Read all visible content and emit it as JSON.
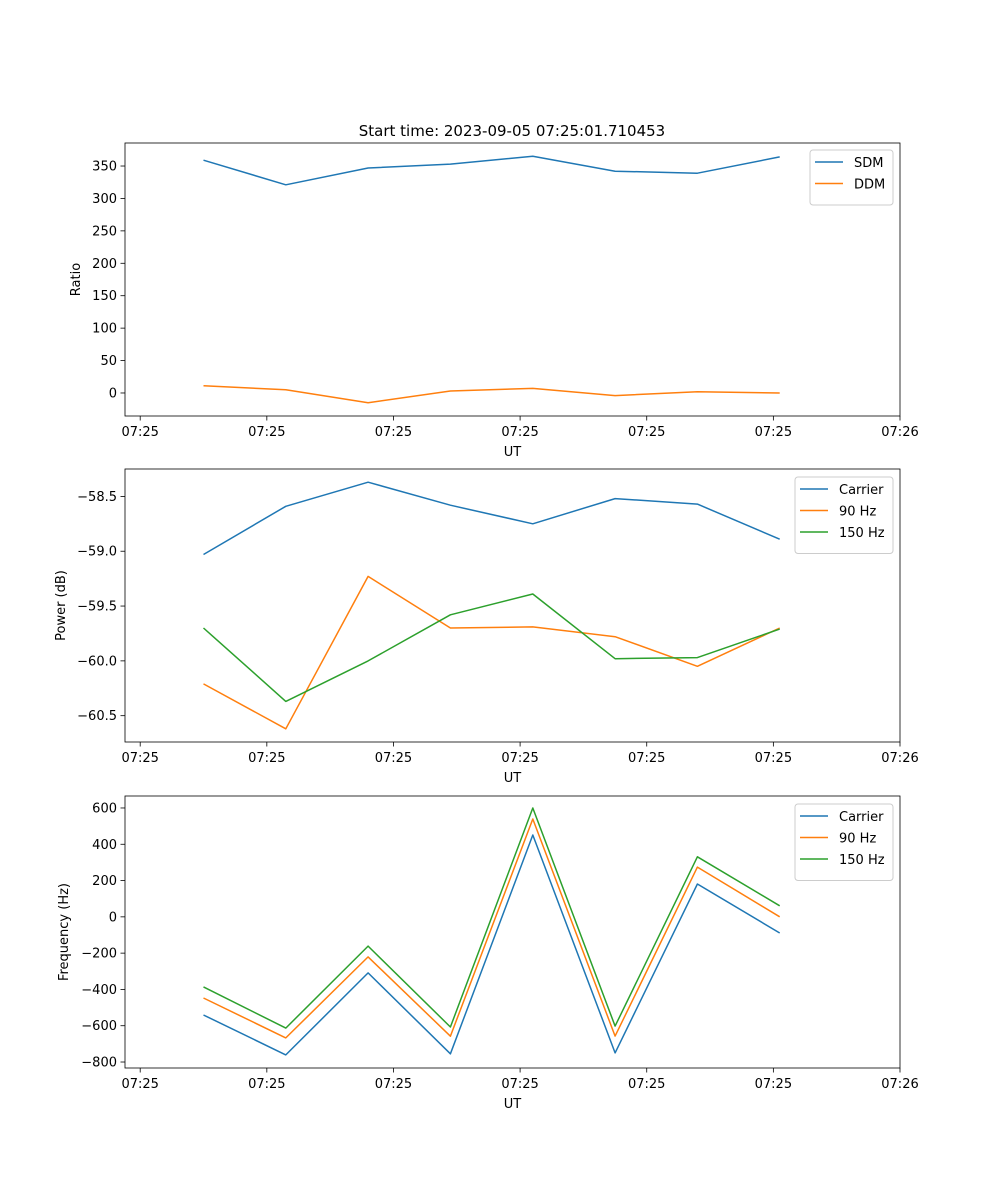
{
  "chart_data": [
    {
      "type": "line",
      "title": "Start time: 2023-09-05 07:25:01.710453",
      "xlabel": "UT",
      "ylabel": "Ratio",
      "x_seconds": [
        5.0,
        11.5,
        18.0,
        24.5,
        31.0,
        37.5,
        44.0,
        50.5
      ],
      "xlim": [
        -1.2,
        60
      ],
      "xticks": [
        0,
        10,
        20,
        30,
        40,
        50,
        60
      ],
      "xtick_labels": [
        "07:25",
        "07:25",
        "07:25",
        "07:25",
        "07:25",
        "07:25",
        "07:26"
      ],
      "ylim": [
        -35.5,
        385.5
      ],
      "yticks": [
        0,
        50,
        100,
        150,
        200,
        250,
        300,
        350
      ],
      "ytick_labels": [
        "0",
        "50",
        "100",
        "150",
        "200",
        "250",
        "300",
        "350"
      ],
      "legend": "top-right",
      "grid": false,
      "series": [
        {
          "name": "SDM",
          "color": "#1f77b4",
          "values": [
            359,
            321,
            347,
            353,
            365,
            342,
            339,
            364
          ]
        },
        {
          "name": "DDM",
          "color": "#ff7f0e",
          "values": [
            11,
            5,
            -15,
            3,
            7,
            -4,
            2,
            0
          ]
        }
      ]
    },
    {
      "type": "line",
      "title": "",
      "xlabel": "UT",
      "ylabel": "Power (dB)",
      "x_seconds": [
        5.0,
        11.5,
        18.0,
        24.5,
        31.0,
        37.5,
        44.0,
        50.5
      ],
      "xlim": [
        -1.2,
        60
      ],
      "xticks": [
        0,
        10,
        20,
        30,
        40,
        50,
        60
      ],
      "xtick_labels": [
        "07:25",
        "07:25",
        "07:25",
        "07:25",
        "07:25",
        "07:25",
        "07:26"
      ],
      "ylim": [
        -60.74,
        -58.25
      ],
      "yticks": [
        -60.5,
        -60.0,
        -59.5,
        -59.0,
        -58.5
      ],
      "ytick_labels": [
        "−60.5",
        "−60.0",
        "−59.5",
        "−59.0",
        "−58.5"
      ],
      "legend": "top-right",
      "grid": false,
      "series": [
        {
          "name": "Carrier",
          "color": "#1f77b4",
          "values": [
            -59.03,
            -58.59,
            -58.37,
            -58.58,
            -58.75,
            -58.52,
            -58.57,
            -58.89
          ]
        },
        {
          "name": "90 Hz",
          "color": "#ff7f0e",
          "values": [
            -60.21,
            -60.62,
            -59.23,
            -59.7,
            -59.69,
            -59.78,
            -60.05,
            -59.7
          ]
        },
        {
          "name": "150 Hz",
          "color": "#2ca02c",
          "values": [
            -59.7,
            -60.37,
            -60.0,
            -59.58,
            -59.39,
            -59.98,
            -59.97,
            -59.71
          ]
        }
      ]
    },
    {
      "type": "line",
      "title": "",
      "xlabel": "UT",
      "ylabel": "Frequency (Hz)",
      "x_seconds": [
        5.0,
        11.5,
        18.0,
        24.5,
        31.0,
        37.5,
        44.0,
        50.5
      ],
      "xlim": [
        -1.2,
        60
      ],
      "xticks": [
        0,
        10,
        20,
        30,
        40,
        50,
        60
      ],
      "xtick_labels": [
        "07:25",
        "07:25",
        "07:25",
        "07:25",
        "07:25",
        "07:25",
        "07:26"
      ],
      "ylim": [
        -833,
        666
      ],
      "yticks": [
        -800,
        -600,
        -400,
        -200,
        0,
        200,
        400,
        600
      ],
      "ytick_labels": [
        "−800",
        "−600",
        "−400",
        "−200",
        "0",
        "200",
        "400",
        "600"
      ],
      "legend": "top-right",
      "grid": false,
      "series": [
        {
          "name": "Carrier",
          "color": "#1f77b4",
          "values": [
            -541,
            -761,
            -309,
            -755,
            451,
            -750,
            181,
            -89
          ]
        },
        {
          "name": "90 Hz",
          "color": "#ff7f0e",
          "values": [
            -447,
            -667,
            -221,
            -658,
            539,
            -657,
            274,
            0
          ]
        },
        {
          "name": "150 Hz",
          "color": "#2ca02c",
          "values": [
            -386,
            -613,
            -161,
            -607,
            600,
            -602,
            331,
            61
          ]
        }
      ]
    }
  ]
}
